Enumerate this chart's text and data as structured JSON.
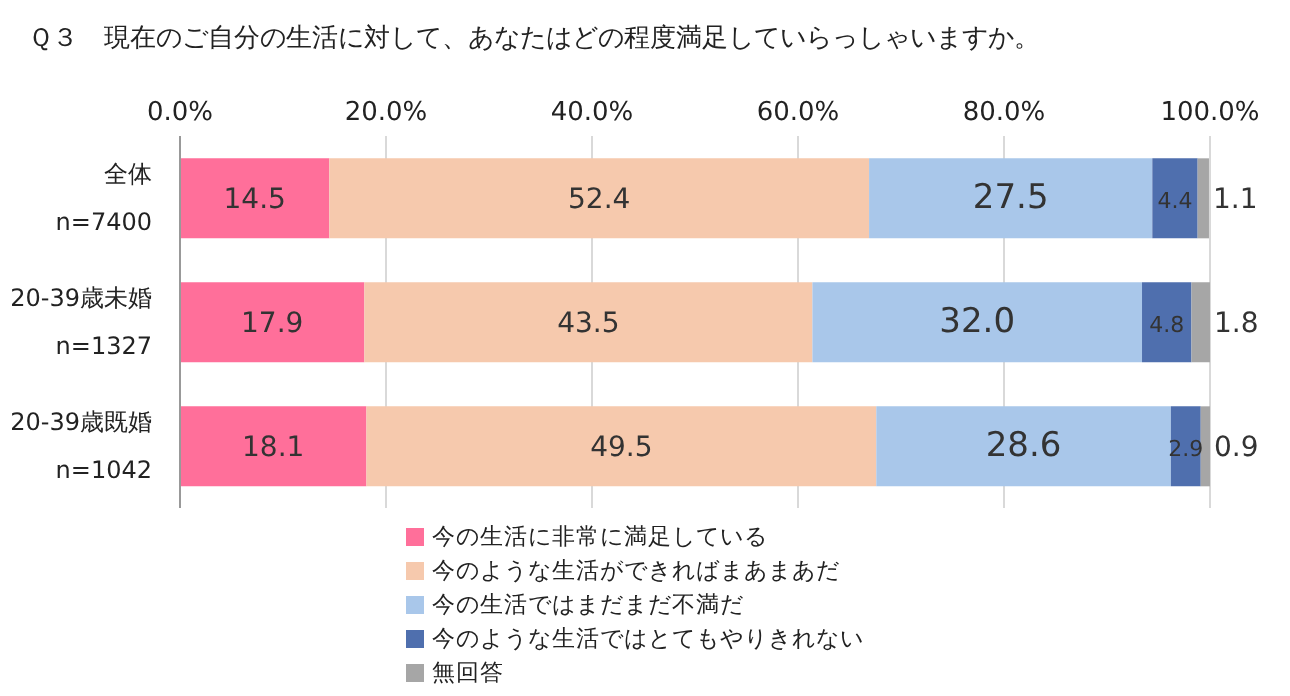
{
  "chart_data": {
    "type": "bar",
    "orientation": "horizontal",
    "stacked": true,
    "title": "Ｑ３　現在のご自分の生活に対して、あなたはどの程度満足していらっしゃいますか。",
    "categories": [
      "全体\nn=7400",
      "20-39歳未婚\nn=1327",
      "20-39歳既婚\nn=1042"
    ],
    "series": [
      {
        "name": "今の生活に非常に満足している",
        "color": "#ff6f9a",
        "values": [
          14.5,
          17.9,
          18.1
        ],
        "value_labels": [
          "14.5",
          "17.9",
          "18.1"
        ]
      },
      {
        "name": "今のような生活ができればまあまあだ",
        "color": "#f6c9ad",
        "values": [
          52.4,
          43.5,
          49.5
        ],
        "value_labels": [
          "52.4",
          "43.5",
          "49.5"
        ]
      },
      {
        "name": "今の生活ではまだまだ不満だ",
        "color": "#a9c7ea",
        "values": [
          27.5,
          32.0,
          28.6
        ],
        "value_labels": [
          "27.5",
          "32.0",
          "28.6"
        ]
      },
      {
        "name": "今のような生活ではとてもやりきれない",
        "color": "#4f6fae",
        "values": [
          4.4,
          4.8,
          2.9
        ],
        "value_labels": [
          "4.4",
          "4.8",
          "2.9"
        ]
      },
      {
        "name": "無回答",
        "color": "#a6a6a6",
        "values": [
          1.1,
          1.8,
          0.9
        ],
        "value_labels": [
          "1.1",
          "1.8",
          "0.9"
        ]
      }
    ],
    "xlim": [
      0,
      100
    ],
    "xticks": [
      {
        "value": 0,
        "label": "0.0%"
      },
      {
        "value": 20,
        "label": "20.0%"
      },
      {
        "value": 40,
        "label": "40.0%"
      },
      {
        "value": 60,
        "label": "60.0%"
      },
      {
        "value": 80,
        "label": "80.0%"
      },
      {
        "value": 100,
        "label": "100.0%"
      }
    ],
    "grid": "x",
    "legend": "bottom"
  }
}
